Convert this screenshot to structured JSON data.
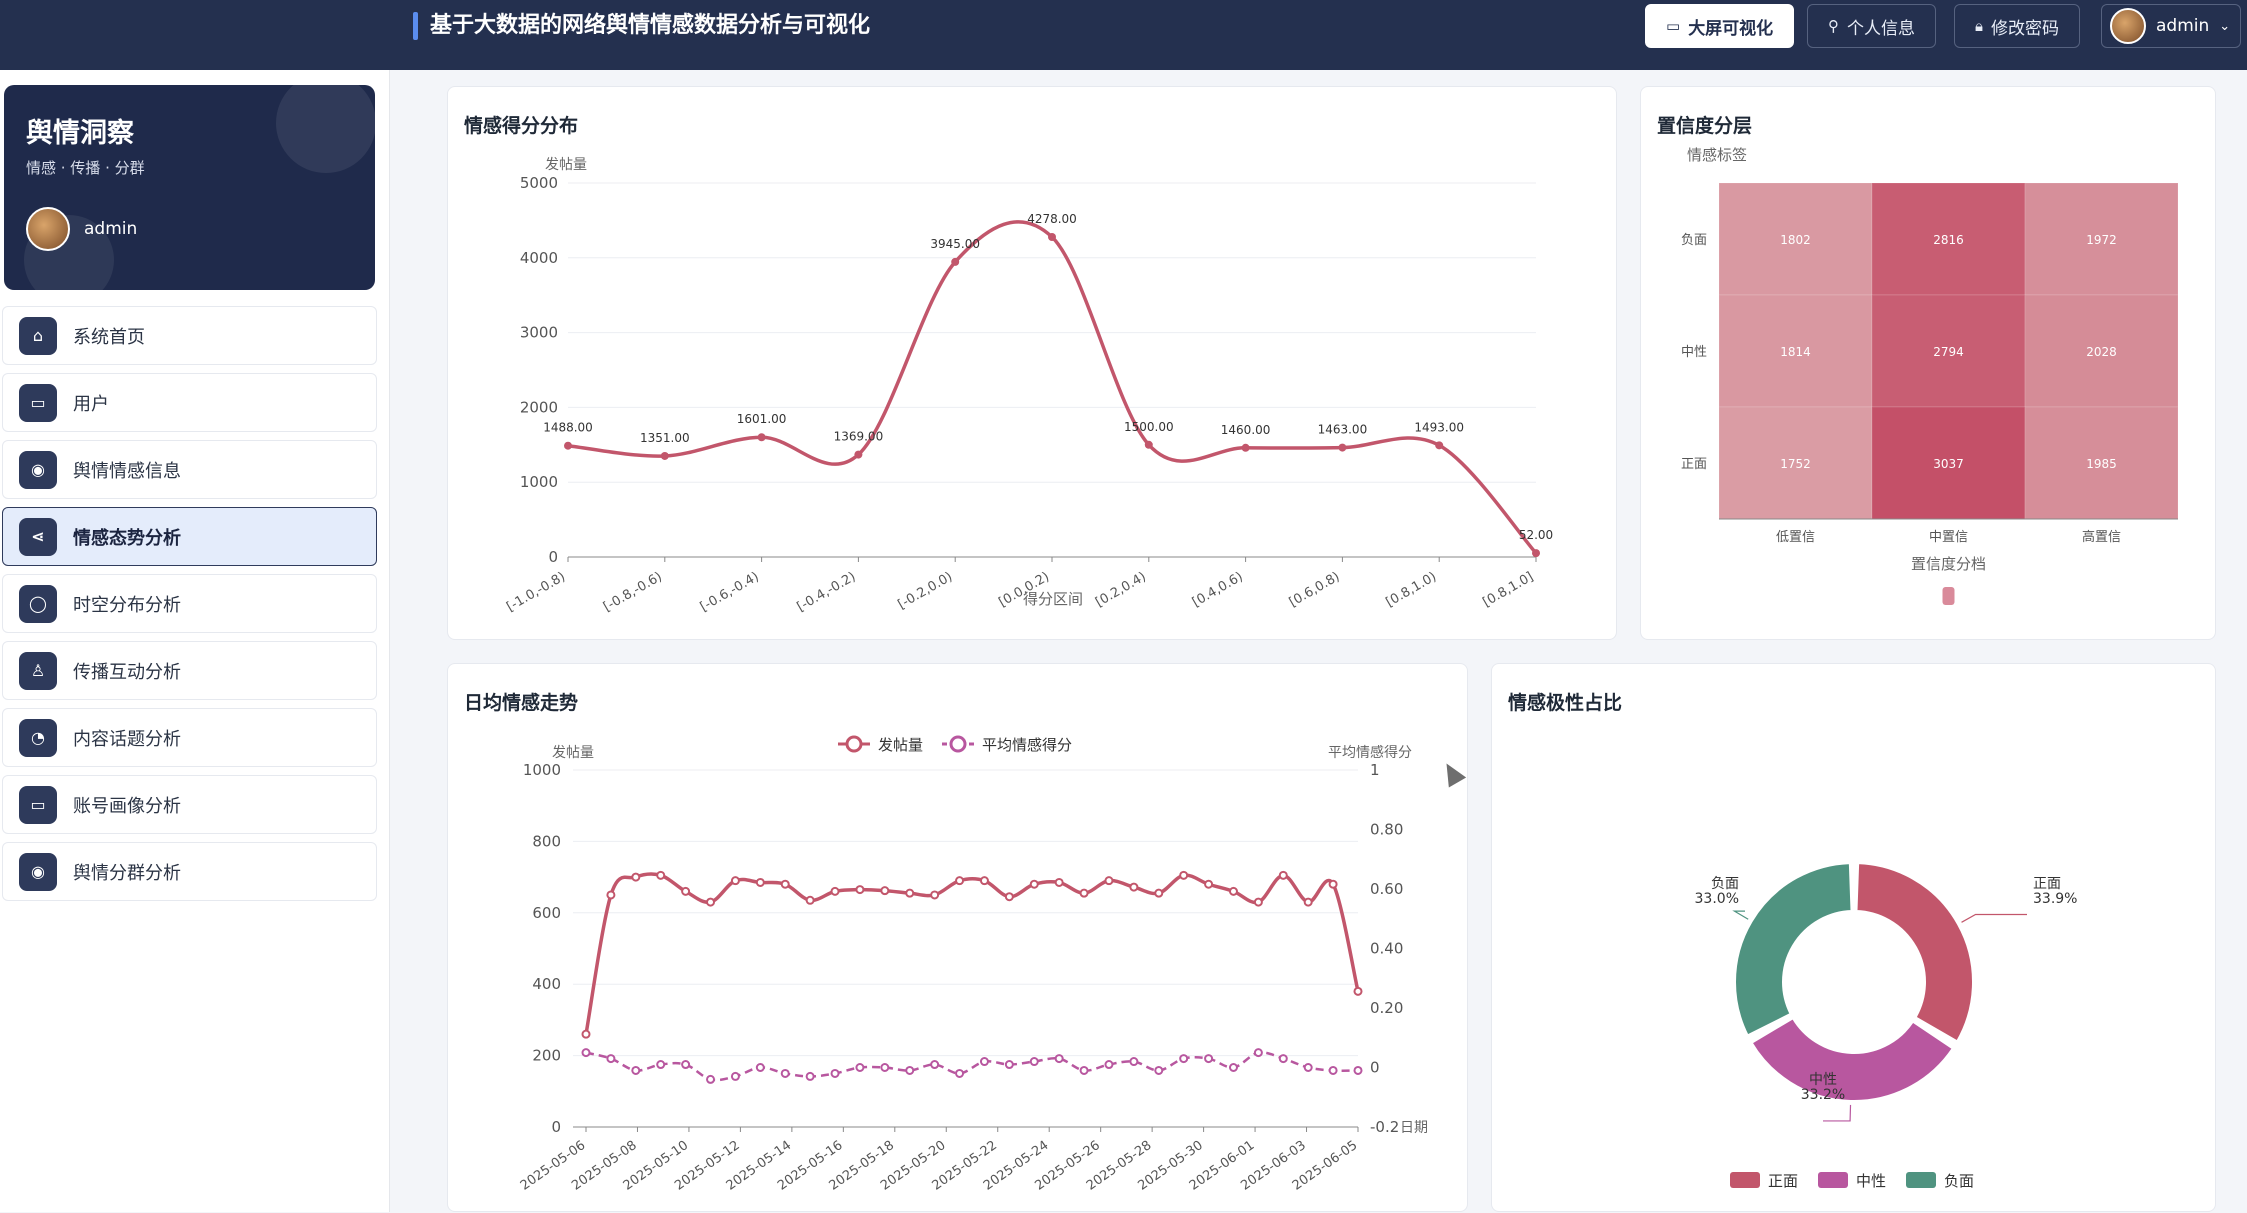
{
  "topbar": {
    "title": "基于大数据的网络舆情情感数据分析与可视化",
    "buttons": [
      {
        "label": "大屏可视化",
        "icon": "screen-icon"
      },
      {
        "label": "个人信息",
        "icon": "user-icon"
      },
      {
        "label": "修改密码",
        "icon": "lock-icon"
      }
    ],
    "user": {
      "name": "admin",
      "icon": "chevron-down-icon"
    }
  },
  "sidebar": {
    "brand": {
      "name": "舆情洞察",
      "slogan": "情感 · 传播 · 分群",
      "user": "admin"
    },
    "items": [
      {
        "label": "系统首页",
        "icon": "home-icon",
        "active": false
      },
      {
        "label": "用户",
        "icon": "chat-icon",
        "active": false
      },
      {
        "label": "舆情情感信息",
        "icon": "location-icon",
        "active": false
      },
      {
        "label": "情感态势分析",
        "icon": "share-icon",
        "active": true
      },
      {
        "label": "时空分布分析",
        "icon": "message-icon",
        "active": false
      },
      {
        "label": "传播互动分析",
        "icon": "person-icon",
        "active": false
      },
      {
        "label": "内容话题分析",
        "icon": "clock-icon",
        "active": false
      },
      {
        "label": "账号画像分析",
        "icon": "chat-icon",
        "active": false
      },
      {
        "label": "舆情分群分析",
        "icon": "location-icon",
        "active": false
      }
    ]
  },
  "colors": {
    "accent": "#c2566b",
    "purple": "#b8579f",
    "teal": "#4f9380",
    "navy": "#24304f"
  },
  "chart_data": [
    {
      "type": "line",
      "title": "情感得分分布",
      "xlabel": "得分区间",
      "ylabel": "发帖量",
      "categories": [
        "[-1.0,-0.8)",
        "[-0.8,-0.6)",
        "[-0.6,-0.4)",
        "[-0.4,-0.2)",
        "[-0.2,0.0)",
        "[0.0,0.2)",
        "[0.2,0.4)",
        "[0.4,0.6)",
        "[0.6,0.8)",
        "[0.8,1.0)",
        "[0.8,1.0]"
      ],
      "values": [
        1488.0,
        1351.0,
        1601.0,
        1369.0,
        3945.0,
        4278.0,
        1500.0,
        1460.0,
        1463.0,
        1493.0,
        52.0
      ],
      "ylim": [
        0,
        5000
      ],
      "yticks": [
        "0",
        "1000",
        "2000",
        "3000",
        "4000",
        "5000"
      ],
      "labels": [
        "1488.00",
        "1351.00",
        "1601.00",
        "1369.00",
        "3945.00",
        "4278.00",
        "1500.00",
        "1460.00",
        "1463.00",
        "1493.00",
        "52.00"
      ]
    },
    {
      "type": "heatmap",
      "title": "置信度分层",
      "xlabel": "置信度分档",
      "ylabel": "情感标签",
      "x_categories": [
        "低置信",
        "中置信",
        "高置信"
      ],
      "y_categories": [
        "负面",
        "中性",
        "正面"
      ],
      "values": [
        [
          1802,
          2816,
          1972
        ],
        [
          1814,
          2794,
          2028
        ],
        [
          1752,
          3037,
          1985
        ]
      ]
    },
    {
      "type": "line",
      "title": "日均情感走势",
      "ylabel": "发帖量",
      "y2label": "平均情感得分",
      "xlabel_tail": "日期",
      "legend": [
        "发帖量",
        "平均情感得分"
      ],
      "x_labels": [
        "2025-05-06",
        "2025-05-08",
        "2025-05-10",
        "2025-05-12",
        "2025-05-14",
        "2025-05-16",
        "2025-05-18",
        "2025-05-20",
        "2025-05-22",
        "2025-05-24",
        "2025-05-26",
        "2025-05-28",
        "2025-05-30",
        "2025-06-01",
        "2025-06-03",
        "2025-06-05"
      ],
      "ylim": [
        0,
        1000
      ],
      "y2lim": [
        -0.2,
        1
      ],
      "yticks": [
        "0",
        "200",
        "400",
        "600",
        "800",
        "1000"
      ],
      "y2ticks": [
        "-0.2",
        "0",
        "0.20",
        "0.40",
        "0.60",
        "0.80",
        "1"
      ],
      "series": [
        {
          "name": "发帖量",
          "values": [
            260,
            650,
            700,
            705,
            660,
            630,
            690,
            685,
            680,
            635,
            660,
            665,
            662,
            655,
            650,
            690,
            690,
            645,
            680,
            685,
            655,
            690,
            672,
            655,
            705,
            680,
            660,
            630,
            705,
            630,
            680,
            380
          ]
        },
        {
          "name": "平均情感得分",
          "values": [
            0.05,
            0.03,
            -0.01,
            0.01,
            0.01,
            -0.04,
            -0.03,
            0.0,
            -0.02,
            -0.03,
            -0.02,
            0.0,
            0.0,
            -0.01,
            0.01,
            -0.02,
            0.02,
            0.01,
            0.02,
            0.03,
            -0.01,
            0.01,
            0.02,
            -0.01,
            0.03,
            0.03,
            0.0,
            0.05,
            0.03,
            0.0,
            -0.01,
            -0.01
          ]
        }
      ]
    },
    {
      "type": "pie",
      "title": "情感极性占比",
      "slices": [
        {
          "name": "正面",
          "value": 33.9,
          "label": "33.9%"
        },
        {
          "name": "中性",
          "value": 33.2,
          "label": "33.2%"
        },
        {
          "name": "负面",
          "value": 33.0,
          "label": "33.0%"
        }
      ]
    }
  ]
}
